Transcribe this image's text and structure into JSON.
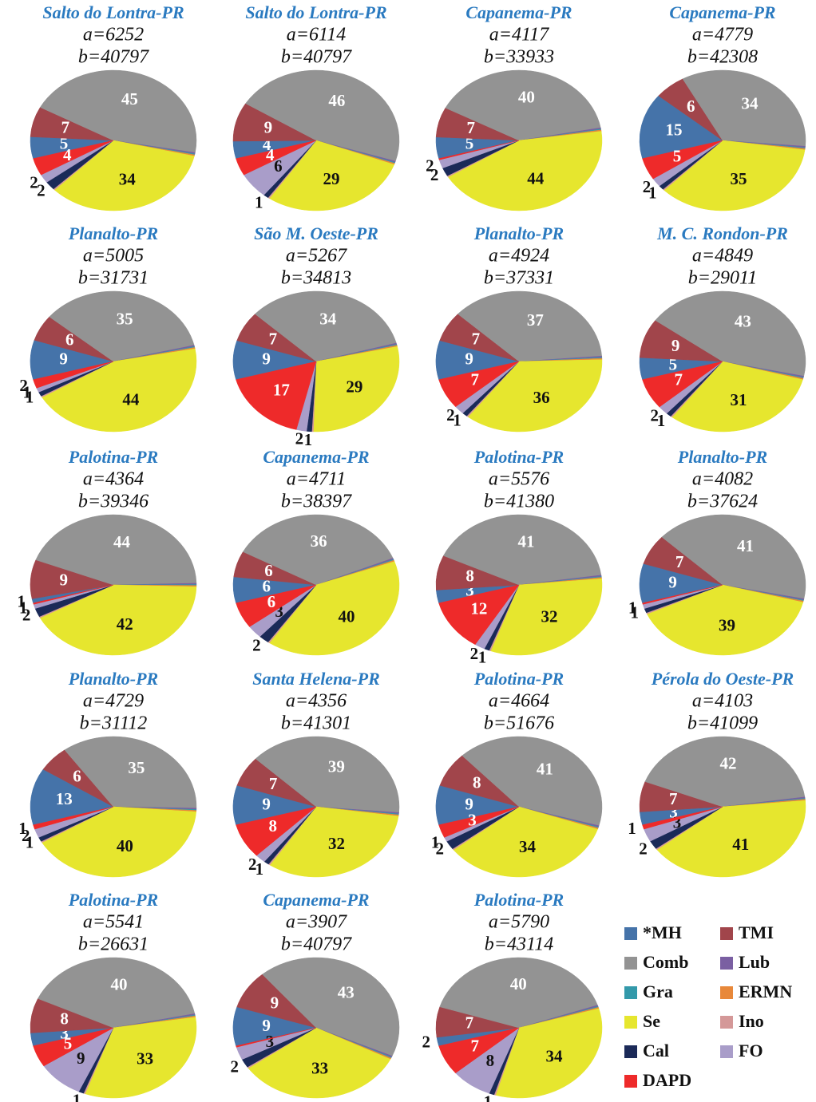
{
  "legend": {
    "names": [
      "*MH",
      "TMI",
      "Comb",
      "Lub",
      "Gra",
      "ERMN",
      "Se",
      "Ino",
      "Cal",
      "FO",
      "DAPD"
    ],
    "colors": [
      "#4573a9",
      "#a1454b",
      "#939393",
      "#7a5fa2",
      "#3399aa",
      "#e8883a",
      "#e6e62e",
      "#d49898",
      "#1b2a58",
      "#a99dc9",
      "#ee2a2a"
    ]
  },
  "chart_data": [
    {
      "type": "pie",
      "title": "Salto do Lontra-PR",
      "subtitle": [
        "a=6252",
        "b=40797"
      ],
      "values": [
        5,
        7,
        45,
        0.3,
        0.2,
        0.3,
        34,
        0.3,
        2,
        2,
        4
      ]
    },
    {
      "type": "pie",
      "title": "Salto do Lontra-PR",
      "subtitle": [
        "a=6114",
        "b=40797"
      ],
      "values": [
        4,
        9,
        46,
        0.3,
        0.2,
        0.3,
        29,
        0.3,
        1,
        6,
        4
      ]
    },
    {
      "type": "pie",
      "title": "Capanema-PR",
      "subtitle": [
        "a=4117",
        "b=33933"
      ],
      "values": [
        5,
        7,
        40,
        0.3,
        0.2,
        0.3,
        44,
        0.3,
        2,
        2,
        0.3
      ]
    },
    {
      "type": "pie",
      "title": "Capanema-PR",
      "subtitle": [
        "a=4779",
        "b=42308"
      ],
      "values": [
        15,
        6,
        34,
        0.3,
        0.2,
        0.3,
        35,
        0.3,
        1,
        2,
        5
      ]
    },
    {
      "type": "pie",
      "title": "Planalto-PR",
      "subtitle": [
        "a=5005",
        "b=31731"
      ],
      "values": [
        9,
        6,
        35,
        0.3,
        0.2,
        0.3,
        44,
        0.3,
        1,
        1,
        2
      ]
    },
    {
      "type": "pie",
      "title": "São M. Oeste-PR",
      "subtitle": [
        "a=5267",
        "b=34813"
      ],
      "values": [
        9,
        7,
        34,
        0.3,
        0.2,
        0.3,
        29,
        0.3,
        1,
        2,
        17
      ]
    },
    {
      "type": "pie",
      "title": "Planalto-PR",
      "subtitle": [
        "a=4924",
        "b=37331"
      ],
      "values": [
        9,
        7,
        37,
        0.3,
        0.2,
        0.3,
        36,
        0.3,
        1,
        2,
        7
      ]
    },
    {
      "type": "pie",
      "title": "M. C. Rondon-PR",
      "subtitle": [
        "a=4849",
        "b=29011"
      ],
      "values": [
        5,
        9,
        43,
        0.3,
        0.2,
        0.3,
        31,
        0.3,
        1,
        2,
        7
      ]
    },
    {
      "type": "pie",
      "title": "Palotina-PR",
      "subtitle": [
        "a=4364",
        "b=39346"
      ],
      "values": [
        1,
        9,
        44,
        0.3,
        0.2,
        0.3,
        42,
        0.3,
        2,
        1,
        0.3
      ]
    },
    {
      "type": "pie",
      "title": "Capanema-PR",
      "subtitle": [
        "a=4711",
        "b=38397"
      ],
      "values": [
        6,
        6,
        36,
        0.3,
        0.2,
        0.3,
        40,
        0.3,
        2,
        3,
        6
      ]
    },
    {
      "type": "pie",
      "title": "Palotina-PR",
      "subtitle": [
        "a=5576",
        "b=41380"
      ],
      "values": [
        3,
        8,
        41,
        0.3,
        0.2,
        0.3,
        32,
        0.3,
        1,
        2,
        12
      ]
    },
    {
      "type": "pie",
      "title": "Planalto-PR",
      "subtitle": [
        "a=4082",
        "b=37624"
      ],
      "values": [
        9,
        7,
        41,
        0.3,
        0.2,
        0.3,
        39,
        0.3,
        1,
        1,
        0.3
      ]
    },
    {
      "type": "pie",
      "title": "Planalto-PR",
      "subtitle": [
        "a=4729",
        "b=31112"
      ],
      "values": [
        13,
        6,
        35,
        0.3,
        0.2,
        0.3,
        40,
        0.3,
        1,
        2,
        1
      ]
    },
    {
      "type": "pie",
      "title": "Santa Helena-PR",
      "subtitle": [
        "a=4356",
        "b=41301"
      ],
      "values": [
        9,
        7,
        39,
        0.3,
        0.2,
        0.3,
        32,
        0.3,
        1,
        2,
        8
      ]
    },
    {
      "type": "pie",
      "title": "Palotina-PR",
      "subtitle": [
        "a=4664",
        "b=51676"
      ],
      "values": [
        9,
        8,
        41,
        0.3,
        0.2,
        0.3,
        34,
        0.3,
        2,
        1,
        3
      ]
    },
    {
      "type": "pie",
      "title": "Pérola do Oeste-PR",
      "subtitle": [
        "a=4103",
        "b=41099"
      ],
      "values": [
        3,
        7,
        42,
        0.3,
        0.2,
        0.3,
        41,
        0.3,
        2,
        3,
        1
      ]
    },
    {
      "type": "pie",
      "title": "Palotina-PR",
      "subtitle": [
        "a=5541",
        "b=26631"
      ],
      "values": [
        3,
        8,
        40,
        0.3,
        0.2,
        0.3,
        33,
        0.3,
        1,
        9,
        5
      ]
    },
    {
      "type": "pie",
      "title": "Capanema-PR",
      "subtitle": [
        "a=3907",
        "b=40797"
      ],
      "values": [
        9,
        9,
        43,
        0.3,
        0.2,
        0.3,
        33,
        0.3,
        2,
        3,
        0.3
      ]
    },
    {
      "type": "pie",
      "title": "Palotina-PR",
      "subtitle": [
        "a=5790",
        "b=43114"
      ],
      "values": [
        2,
        7,
        40,
        0.3,
        0.2,
        0.3,
        34,
        0.3,
        1,
        8,
        7
      ]
    }
  ]
}
